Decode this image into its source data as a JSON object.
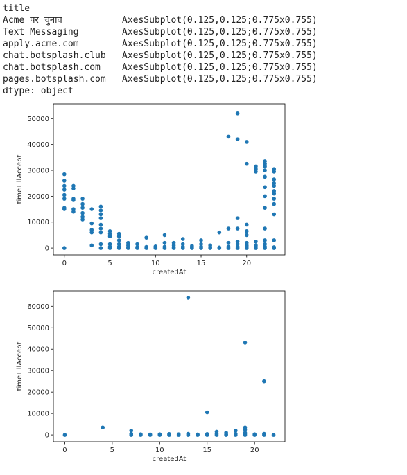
{
  "output": {
    "series_header": "title",
    "rows": [
      {
        "key": "Acme पर चुनाव",
        "value": "AxesSubplot(0.125,0.125;0.775x0.755)"
      },
      {
        "key": "Text Messaging",
        "value": "AxesSubplot(0.125,0.125;0.775x0.755)"
      },
      {
        "key": "apply.acme.com",
        "value": "AxesSubplot(0.125,0.125;0.775x0.755)"
      },
      {
        "key": "chat.botsplash.club",
        "value": "AxesSubplot(0.125,0.125;0.775x0.755)"
      },
      {
        "key": "chat.botsplash.com",
        "value": "AxesSubplot(0.125,0.125;0.775x0.755)"
      },
      {
        "key": "pages.botsplash.com",
        "value": "AxesSubplot(0.125,0.125;0.775x0.755)"
      }
    ],
    "dtype": "dtype: object"
  },
  "colors": {
    "point": "#1f77b4",
    "axis": "#000000",
    "text": "#222222"
  },
  "chart_data": [
    {
      "type": "scatter",
      "xlabel": "createdAt",
      "ylabel": "timeTillAccept",
      "xlim": [
        -1.2,
        24.2
      ],
      "ylim": [
        -2650,
        55700
      ],
      "xticks": [
        0,
        5,
        10,
        15,
        20
      ],
      "yticks": [
        0,
        10000,
        20000,
        30000,
        40000,
        50000
      ],
      "ytick_labels": [
        "0",
        "10000",
        "20000",
        "30000",
        "40000",
        "50000"
      ],
      "grid": false,
      "points": [
        [
          0,
          0
        ],
        [
          0,
          15000
        ],
        [
          0,
          15500
        ],
        [
          0,
          19000
        ],
        [
          0,
          20500
        ],
        [
          0,
          22500
        ],
        [
          0,
          24000
        ],
        [
          0,
          26000
        ],
        [
          0,
          28500
        ],
        [
          1,
          14000
        ],
        [
          1,
          15000
        ],
        [
          1,
          18500
        ],
        [
          1,
          19000
        ],
        [
          1,
          23000
        ],
        [
          1,
          24000
        ],
        [
          2,
          11000
        ],
        [
          2,
          12000
        ],
        [
          2,
          13500
        ],
        [
          2,
          15500
        ],
        [
          2,
          17000
        ],
        [
          2,
          19000
        ],
        [
          3,
          1000
        ],
        [
          3,
          6000
        ],
        [
          3,
          7000
        ],
        [
          3,
          9500
        ],
        [
          3,
          15000
        ],
        [
          4,
          0
        ],
        [
          4,
          1500
        ],
        [
          4,
          6000
        ],
        [
          4,
          7500
        ],
        [
          4,
          9000
        ],
        [
          4,
          11500
        ],
        [
          4,
          13000
        ],
        [
          4,
          14500
        ],
        [
          4,
          16000
        ],
        [
          5,
          0
        ],
        [
          5,
          500
        ],
        [
          5,
          1500
        ],
        [
          5,
          4500
        ],
        [
          5,
          5500
        ],
        [
          5,
          6500
        ],
        [
          6,
          0
        ],
        [
          6,
          500
        ],
        [
          6,
          1500
        ],
        [
          6,
          3000
        ],
        [
          6,
          4500
        ],
        [
          6,
          5500
        ],
        [
          7,
          0
        ],
        [
          7,
          300
        ],
        [
          7,
          1000
        ],
        [
          7,
          2000
        ],
        [
          8,
          0
        ],
        [
          8,
          300
        ],
        [
          8,
          1500
        ],
        [
          9,
          0
        ],
        [
          9,
          400
        ],
        [
          9,
          4000
        ],
        [
          10,
          0
        ],
        [
          10,
          300
        ],
        [
          10,
          600
        ],
        [
          11,
          0
        ],
        [
          11,
          500
        ],
        [
          11,
          2000
        ],
        [
          11,
          5000
        ],
        [
          12,
          0
        ],
        [
          12,
          300
        ],
        [
          12,
          1000
        ],
        [
          12,
          2000
        ],
        [
          13,
          0
        ],
        [
          13,
          500
        ],
        [
          13,
          1500
        ],
        [
          13,
          3500
        ],
        [
          14,
          0
        ],
        [
          14,
          300
        ],
        [
          14,
          800
        ],
        [
          15,
          0
        ],
        [
          15,
          500
        ],
        [
          15,
          1500
        ],
        [
          15,
          3000
        ],
        [
          16,
          0
        ],
        [
          16,
          300
        ],
        [
          16,
          1000
        ],
        [
          17,
          0
        ],
        [
          17,
          200
        ],
        [
          17,
          6000
        ],
        [
          18,
          0
        ],
        [
          18,
          500
        ],
        [
          18,
          2000
        ],
        [
          18,
          7500
        ],
        [
          18,
          43000
        ],
        [
          19,
          0
        ],
        [
          19,
          500
        ],
        [
          19,
          1500
        ],
        [
          19,
          2500
        ],
        [
          19,
          7500
        ],
        [
          19,
          11500
        ],
        [
          19,
          42000
        ],
        [
          19,
          52000
        ],
        [
          20,
          0
        ],
        [
          20,
          500
        ],
        [
          20,
          1000
        ],
        [
          20,
          2000
        ],
        [
          20,
          5000
        ],
        [
          20,
          6500
        ],
        [
          20,
          9000
        ],
        [
          20,
          32500
        ],
        [
          20,
          41000
        ],
        [
          21,
          0
        ],
        [
          21,
          500
        ],
        [
          21,
          1000
        ],
        [
          21,
          2500
        ],
        [
          21,
          29500
        ],
        [
          21,
          30500
        ],
        [
          21,
          31500
        ],
        [
          22,
          0
        ],
        [
          22,
          500
        ],
        [
          22,
          1500
        ],
        [
          22,
          3000
        ],
        [
          22,
          7500
        ],
        [
          22,
          15500
        ],
        [
          22,
          20000
        ],
        [
          22,
          23500
        ],
        [
          22,
          27500
        ],
        [
          22,
          30000
        ],
        [
          22,
          31500
        ],
        [
          22,
          32500
        ],
        [
          22,
          33500
        ],
        [
          23,
          0
        ],
        [
          23,
          300
        ],
        [
          23,
          3000
        ],
        [
          23,
          13000
        ],
        [
          23,
          17000
        ],
        [
          23,
          19000
        ],
        [
          23,
          21000
        ],
        [
          23,
          22000
        ],
        [
          23,
          24000
        ],
        [
          23,
          25000
        ],
        [
          23,
          26500
        ],
        [
          23,
          29500
        ],
        [
          23,
          30500
        ]
      ]
    },
    {
      "type": "scatter",
      "xlabel": "createdAt",
      "ylabel": "timeTillAccept",
      "xlim": [
        -1.2,
        23.2
      ],
      "ylim": [
        -3200,
        67200
      ],
      "xticks": [
        0,
        5,
        10,
        15,
        20
      ],
      "yticks": [
        0,
        10000,
        20000,
        30000,
        40000,
        50000,
        60000
      ],
      "ytick_labels": [
        "0",
        "10000",
        "20000",
        "30000",
        "40000",
        "50000",
        "60000"
      ],
      "grid": false,
      "points": [
        [
          0,
          0
        ],
        [
          4,
          3500
        ],
        [
          7,
          0
        ],
        [
          7,
          500
        ],
        [
          7,
          2000
        ],
        [
          8,
          0
        ],
        [
          8,
          300
        ],
        [
          9,
          0
        ],
        [
          9,
          200
        ],
        [
          10,
          0
        ],
        [
          10,
          300
        ],
        [
          11,
          0
        ],
        [
          11,
          400
        ],
        [
          12,
          0
        ],
        [
          12,
          300
        ],
        [
          13,
          0
        ],
        [
          13,
          500
        ],
        [
          13,
          64000
        ],
        [
          14,
          0
        ],
        [
          14,
          200
        ],
        [
          15,
          0
        ],
        [
          15,
          400
        ],
        [
          15,
          10500
        ],
        [
          16,
          0
        ],
        [
          16,
          500
        ],
        [
          16,
          1500
        ],
        [
          17,
          0
        ],
        [
          17,
          300
        ],
        [
          17,
          1000
        ],
        [
          18,
          0
        ],
        [
          18,
          500
        ],
        [
          18,
          2000
        ],
        [
          19,
          0
        ],
        [
          19,
          500
        ],
        [
          19,
          1000
        ],
        [
          19,
          2500
        ],
        [
          19,
          3500
        ],
        [
          19,
          43000
        ],
        [
          20,
          0
        ],
        [
          20,
          300
        ],
        [
          21,
          0
        ],
        [
          21,
          500
        ],
        [
          21,
          25000
        ],
        [
          22,
          0
        ]
      ]
    }
  ]
}
